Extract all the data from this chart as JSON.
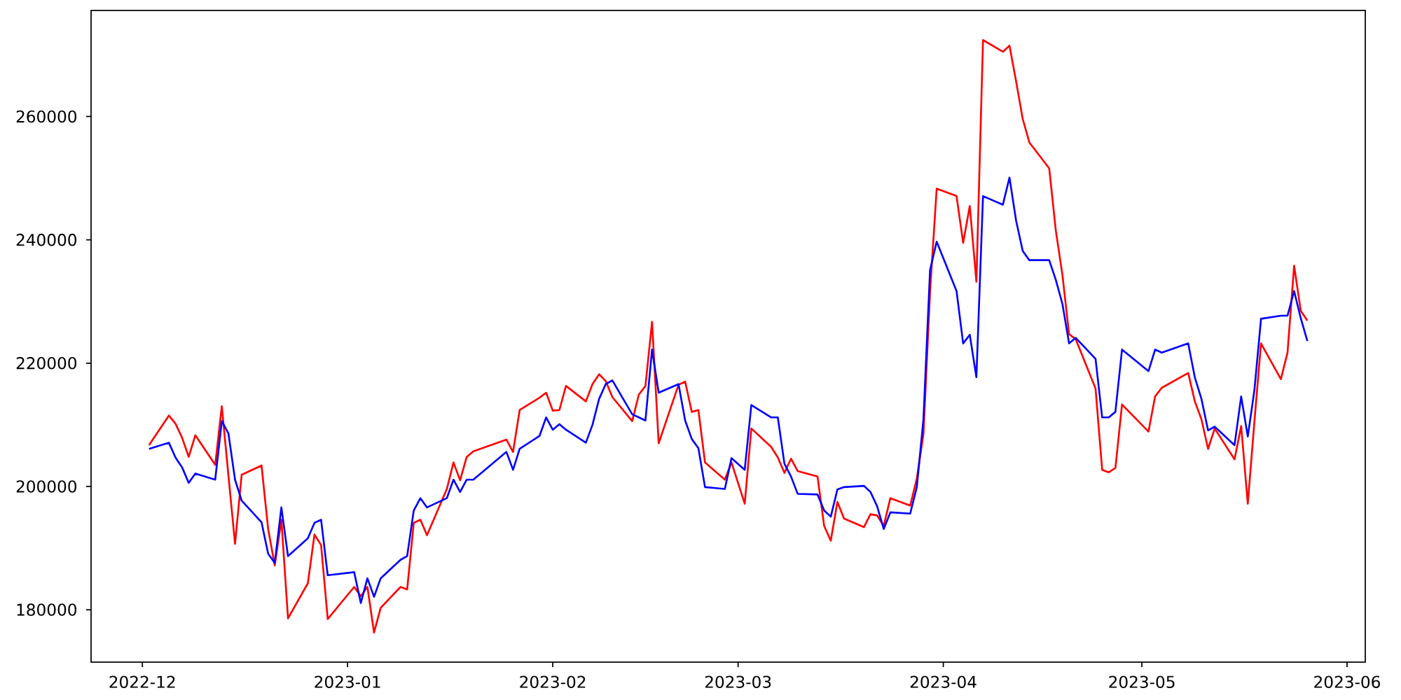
{
  "chart_data": {
    "type": "line",
    "x": [
      "2022-12-02",
      "2022-12-05",
      "2022-12-06",
      "2022-12-07",
      "2022-12-08",
      "2022-12-09",
      "2022-12-12",
      "2022-12-13",
      "2022-12-14",
      "2022-12-15",
      "2022-12-16",
      "2022-12-19",
      "2022-12-20",
      "2022-12-21",
      "2022-12-22",
      "2022-12-23",
      "2022-12-26",
      "2022-12-27",
      "2022-12-28",
      "2022-12-29",
      "2023-01-02",
      "2023-01-03",
      "2023-01-04",
      "2023-01-05",
      "2023-01-06",
      "2023-01-09",
      "2023-01-10",
      "2023-01-11",
      "2023-01-12",
      "2023-01-13",
      "2023-01-16",
      "2023-01-17",
      "2023-01-18",
      "2023-01-19",
      "2023-01-20",
      "2023-01-25",
      "2023-01-26",
      "2023-01-27",
      "2023-01-30",
      "2023-01-31",
      "2023-02-01",
      "2023-02-02",
      "2023-02-03",
      "2023-02-06",
      "2023-02-07",
      "2023-02-08",
      "2023-02-09",
      "2023-02-10",
      "2023-02-13",
      "2023-02-14",
      "2023-02-15",
      "2023-02-16",
      "2023-02-17",
      "2023-02-20",
      "2023-02-21",
      "2023-02-22",
      "2023-02-23",
      "2023-02-24",
      "2023-02-27",
      "2023-02-28",
      "2023-03-02",
      "2023-03-03",
      "2023-03-06",
      "2023-03-07",
      "2023-03-08",
      "2023-03-09",
      "2023-03-10",
      "2023-03-13",
      "2023-03-14",
      "2023-03-15",
      "2023-03-16",
      "2023-03-17",
      "2023-03-20",
      "2023-03-21",
      "2023-03-22",
      "2023-03-23",
      "2023-03-24",
      "2023-03-27",
      "2023-03-28",
      "2023-03-29",
      "2023-03-30",
      "2023-03-31",
      "2023-04-03",
      "2023-04-04",
      "2023-04-05",
      "2023-04-06",
      "2023-04-07",
      "2023-04-10",
      "2023-04-11",
      "2023-04-12",
      "2023-04-13",
      "2023-04-14",
      "2023-04-17",
      "2023-04-18",
      "2023-04-19",
      "2023-04-20",
      "2023-04-21",
      "2023-04-24",
      "2023-04-25",
      "2023-04-26",
      "2023-04-27",
      "2023-04-28",
      "2023-05-02",
      "2023-05-03",
      "2023-05-04",
      "2023-05-08",
      "2023-05-09",
      "2023-05-10",
      "2023-05-11",
      "2023-05-12",
      "2023-05-15",
      "2023-05-16",
      "2023-05-17",
      "2023-05-18",
      "2023-05-19",
      "2023-05-22",
      "2023-05-23",
      "2023-05-24",
      "2023-05-25",
      "2023-05-26"
    ],
    "series": [
      {
        "color": "#ff0000",
        "values": [
          206700,
          211500,
          210200,
          207900,
          204800,
          208300,
          203500,
          213000,
          201800,
          190700,
          201900,
          203400,
          193100,
          187200,
          194600,
          178600,
          184300,
          192200,
          190500,
          178500,
          183700,
          182200,
          183700,
          176300,
          180300,
          183700,
          183300,
          194100,
          194600,
          192100,
          199600,
          203900,
          201000,
          204800,
          205700,
          207600,
          205600,
          212400,
          214400,
          215200,
          212300,
          212400,
          216300,
          213800,
          216600,
          218200,
          217100,
          214500,
          210600,
          214900,
          216300,
          226700,
          207000,
          216500,
          217000,
          212100,
          212400,
          203900,
          201100,
          203900,
          197200,
          209400,
          206400,
          204700,
          202200,
          204500,
          202500,
          201600,
          193600,
          191200,
          197500,
          194800,
          193400,
          195500,
          195300,
          193600,
          198100,
          196900,
          201300,
          208500,
          231600,
          248300,
          247100,
          239500,
          245500,
          233200,
          272400,
          270500,
          271500,
          265700,
          259600,
          255800,
          251600,
          241500,
          234300,
          224700,
          223900,
          215900,
          202700,
          202300,
          203000,
          213300,
          208900,
          214600,
          216000,
          218400,
          213800,
          210900,
          206100,
          209400,
          204400,
          209800,
          197200,
          210500,
          223200,
          217400,
          221700,
          235800,
          228500,
          226900
        ]
      },
      {
        "color": "#0000ff",
        "values": [
          206100,
          207100,
          204700,
          203100,
          200600,
          202100,
          201100,
          210600,
          208600,
          201100,
          197700,
          194200,
          189100,
          187600,
          196600,
          188700,
          191600,
          194100,
          194600,
          185600,
          186100,
          181100,
          185100,
          182100,
          185100,
          188100,
          188700,
          196100,
          198100,
          196600,
          198100,
          201100,
          199100,
          201100,
          201100,
          205600,
          202700,
          206100,
          208200,
          211200,
          209200,
          210100,
          209200,
          207100,
          210000,
          214200,
          216600,
          217200,
          211700,
          211200,
          210700,
          222200,
          215200,
          216600,
          210700,
          207700,
          206200,
          199900,
          199600,
          204600,
          202700,
          213200,
          211200,
          211200,
          203700,
          201600,
          198800,
          198700,
          196100,
          195100,
          199500,
          199900,
          200100,
          199100,
          196800,
          193100,
          195800,
          195600,
          199900,
          210900,
          235100,
          239700,
          231700,
          223200,
          224600,
          217700,
          247100,
          245700,
          250100,
          243100,
          238200,
          236700,
          236700,
          233500,
          229600,
          223200,
          224100,
          220700,
          211200,
          211200,
          212100,
          222200,
          218700,
          222200,
          221700,
          223200,
          217700,
          214200,
          209100,
          209700,
          206700,
          214600,
          208100,
          215600,
          227200,
          227700,
          227700,
          231700,
          227300,
          223600
        ]
      }
    ],
    "xlim": [
      "2022-11-23T06:00",
      "2023-06-03T18:00"
    ],
    "xticks": [
      {
        "value": "2022-12-01",
        "label": "2022-12"
      },
      {
        "value": "2023-01-01",
        "label": "2023-01"
      },
      {
        "value": "2023-02-01",
        "label": "2023-02"
      },
      {
        "value": "2023-03-01",
        "label": "2023-03"
      },
      {
        "value": "2023-04-01",
        "label": "2023-04"
      },
      {
        "value": "2023-05-01",
        "label": "2023-05"
      },
      {
        "value": "2023-06-01",
        "label": "2023-06"
      }
    ],
    "ylim": [
      171500,
      277200
    ],
    "yticks": [
      180000,
      200000,
      220000,
      240000,
      260000
    ]
  }
}
